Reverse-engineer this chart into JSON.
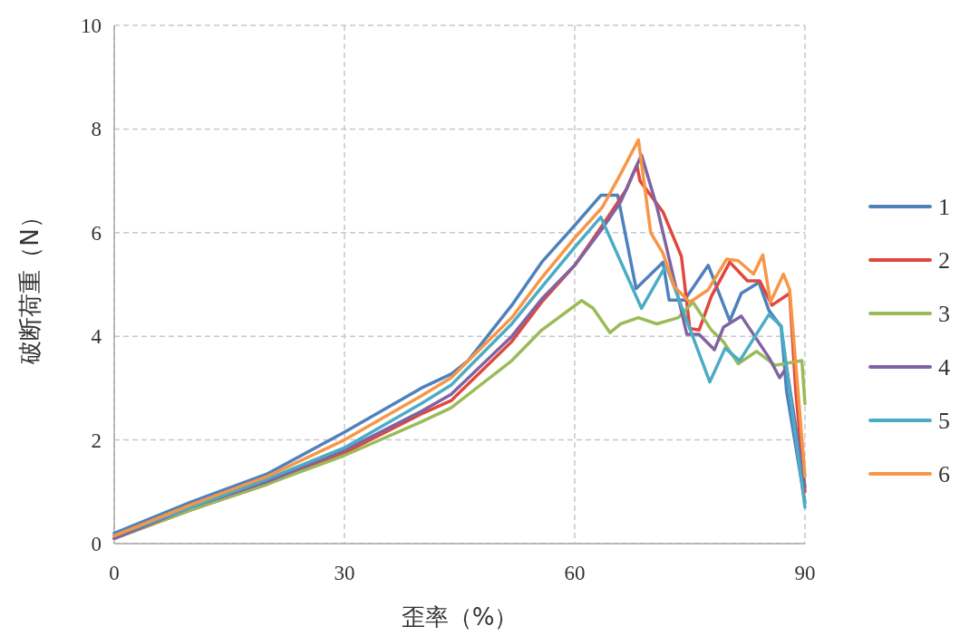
{
  "chart_data": {
    "type": "line",
    "xlabel": "歪率（%）",
    "ylabel": "破断荷重（N）",
    "xlim": [
      0,
      90
    ],
    "ylim": [
      0,
      10
    ],
    "xticks": [
      0,
      30,
      60,
      90
    ],
    "yticks": [
      0,
      2,
      4,
      6,
      8,
      10
    ],
    "grid": true,
    "legend": "right",
    "marker": "none",
    "line_style": "solid",
    "series": [
      {
        "name": "1",
        "color": "#4f81bd",
        "x": [
          0,
          10,
          20,
          30,
          40,
          43.9,
          46.1,
          51.8,
          55.7,
          60,
          62.4,
          63.4,
          65.6,
          68,
          71.5,
          72.3,
          74.3,
          77.4,
          80.2,
          81.7,
          84,
          85.3,
          86.9,
          87.6,
          90
        ],
        "values": [
          0.2,
          0.8,
          1.35,
          2.15,
          3.0,
          3.27,
          3.53,
          4.6,
          5.43,
          6.14,
          6.55,
          6.72,
          6.72,
          4.92,
          5.43,
          4.7,
          4.7,
          5.37,
          4.3,
          4.83,
          5.04,
          4.5,
          4.18,
          2.94,
          0.8
        ]
      },
      {
        "name": "2",
        "color": "#e0483c",
        "x": [
          0,
          10,
          20,
          30,
          40,
          43.9,
          51.8,
          55.7,
          60,
          63.6,
          66.8,
          67.6,
          68.1,
          68.5,
          71.5,
          73.9,
          75,
          76.2,
          77.8,
          80.2,
          82.5,
          84.1,
          85.7,
          88,
          88.8,
          90
        ],
        "values": [
          0.1,
          0.65,
          1.15,
          1.75,
          2.5,
          2.76,
          3.9,
          4.66,
          5.37,
          6.14,
          6.85,
          7.14,
          7.3,
          7.0,
          6.4,
          5.54,
          4.15,
          4.12,
          4.77,
          5.43,
          5.07,
          5.07,
          4.6,
          4.83,
          2.94,
          1.0
        ]
      },
      {
        "name": "3",
        "color": "#9bbb59",
        "x": [
          0,
          10,
          20,
          30,
          40,
          43.9,
          51.8,
          55.7,
          60.9,
          62.4,
          64.6,
          66,
          68.3,
          70.7,
          73.5,
          75.4,
          77.8,
          79.4,
          81.3,
          83.7,
          86.1,
          89.6,
          90
        ],
        "values": [
          0.1,
          0.65,
          1.15,
          1.7,
          2.35,
          2.62,
          3.53,
          4.12,
          4.69,
          4.54,
          4.07,
          4.24,
          4.36,
          4.24,
          4.36,
          4.66,
          4.12,
          3.89,
          3.47,
          3.71,
          3.44,
          3.53,
          2.7
        ]
      },
      {
        "name": "4",
        "color": "#8064a2",
        "x": [
          0,
          10,
          20,
          30,
          40,
          43.9,
          51.8,
          55.7,
          60,
          63.6,
          66,
          68.7,
          70.7,
          72.3,
          74.6,
          76.2,
          78.2,
          79.4,
          81.7,
          85.3,
          86.7,
          87.6,
          90
        ],
        "values": [
          0.1,
          0.7,
          1.2,
          1.8,
          2.55,
          2.88,
          4.0,
          4.72,
          5.37,
          6.08,
          6.6,
          7.5,
          6.5,
          5.5,
          4.04,
          4.04,
          3.74,
          4.18,
          4.39,
          3.59,
          3.2,
          3.4,
          1.1
        ]
      },
      {
        "name": "5",
        "color": "#4bacc6",
        "x": [
          0,
          10,
          20,
          30,
          40,
          43.9,
          51.8,
          55.7,
          60,
          63.4,
          68.7,
          71.9,
          77.6,
          79.6,
          81.5,
          85.3,
          86.9,
          90
        ],
        "values": [
          0.15,
          0.7,
          1.25,
          1.85,
          2.7,
          3.06,
          4.24,
          4.95,
          5.72,
          6.3,
          4.54,
          5.37,
          3.12,
          3.77,
          3.53,
          4.42,
          4.2,
          0.7
        ]
      },
      {
        "name": "6",
        "color": "#f79646",
        "x": [
          0,
          10,
          20,
          30,
          40,
          43.9,
          51.8,
          55.7,
          60,
          63.6,
          66,
          68.3,
          69.9,
          71.5,
          73,
          75,
          77.4,
          79.8,
          81.3,
          83.3,
          84.5,
          85.5,
          87.2,
          88,
          90
        ],
        "values": [
          0.15,
          0.75,
          1.3,
          2.0,
          2.85,
          3.2,
          4.36,
          5.13,
          5.9,
          6.49,
          7.14,
          7.79,
          6.0,
          5.6,
          4.95,
          4.66,
          4.9,
          5.49,
          5.46,
          5.2,
          5.57,
          4.66,
          5.2,
          4.9,
          1.3
        ]
      }
    ]
  }
}
